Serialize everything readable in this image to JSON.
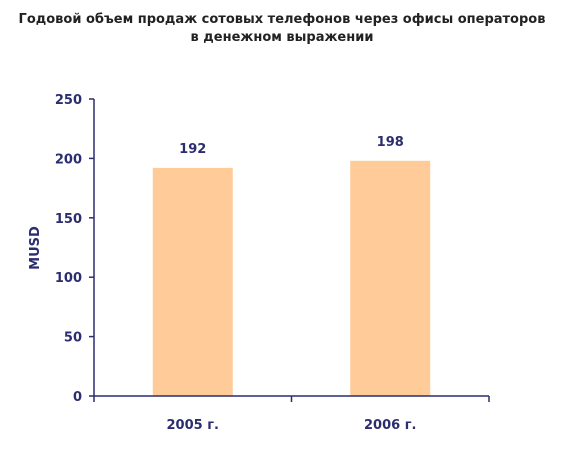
{
  "chart_data": {
    "type": "bar",
    "title": [
      "Годовой объем продаж сотовых телефонов через офисы операторов",
      "в денежном выражении"
    ],
    "ylabel": "MUSD",
    "xlabel": "",
    "categories": [
      "2005 г.",
      "2006 г."
    ],
    "values": [
      192,
      198
    ],
    "value_labels": [
      "192",
      "198"
    ],
    "ylim": [
      0,
      250
    ],
    "yticks": [
      "0",
      "50",
      "100",
      "150",
      "200",
      "250"
    ],
    "legend": "none",
    "grid": false,
    "colors": {
      "bar": "#ffcc99",
      "axis": "#2b2d6e",
      "title": "#222222"
    }
  }
}
